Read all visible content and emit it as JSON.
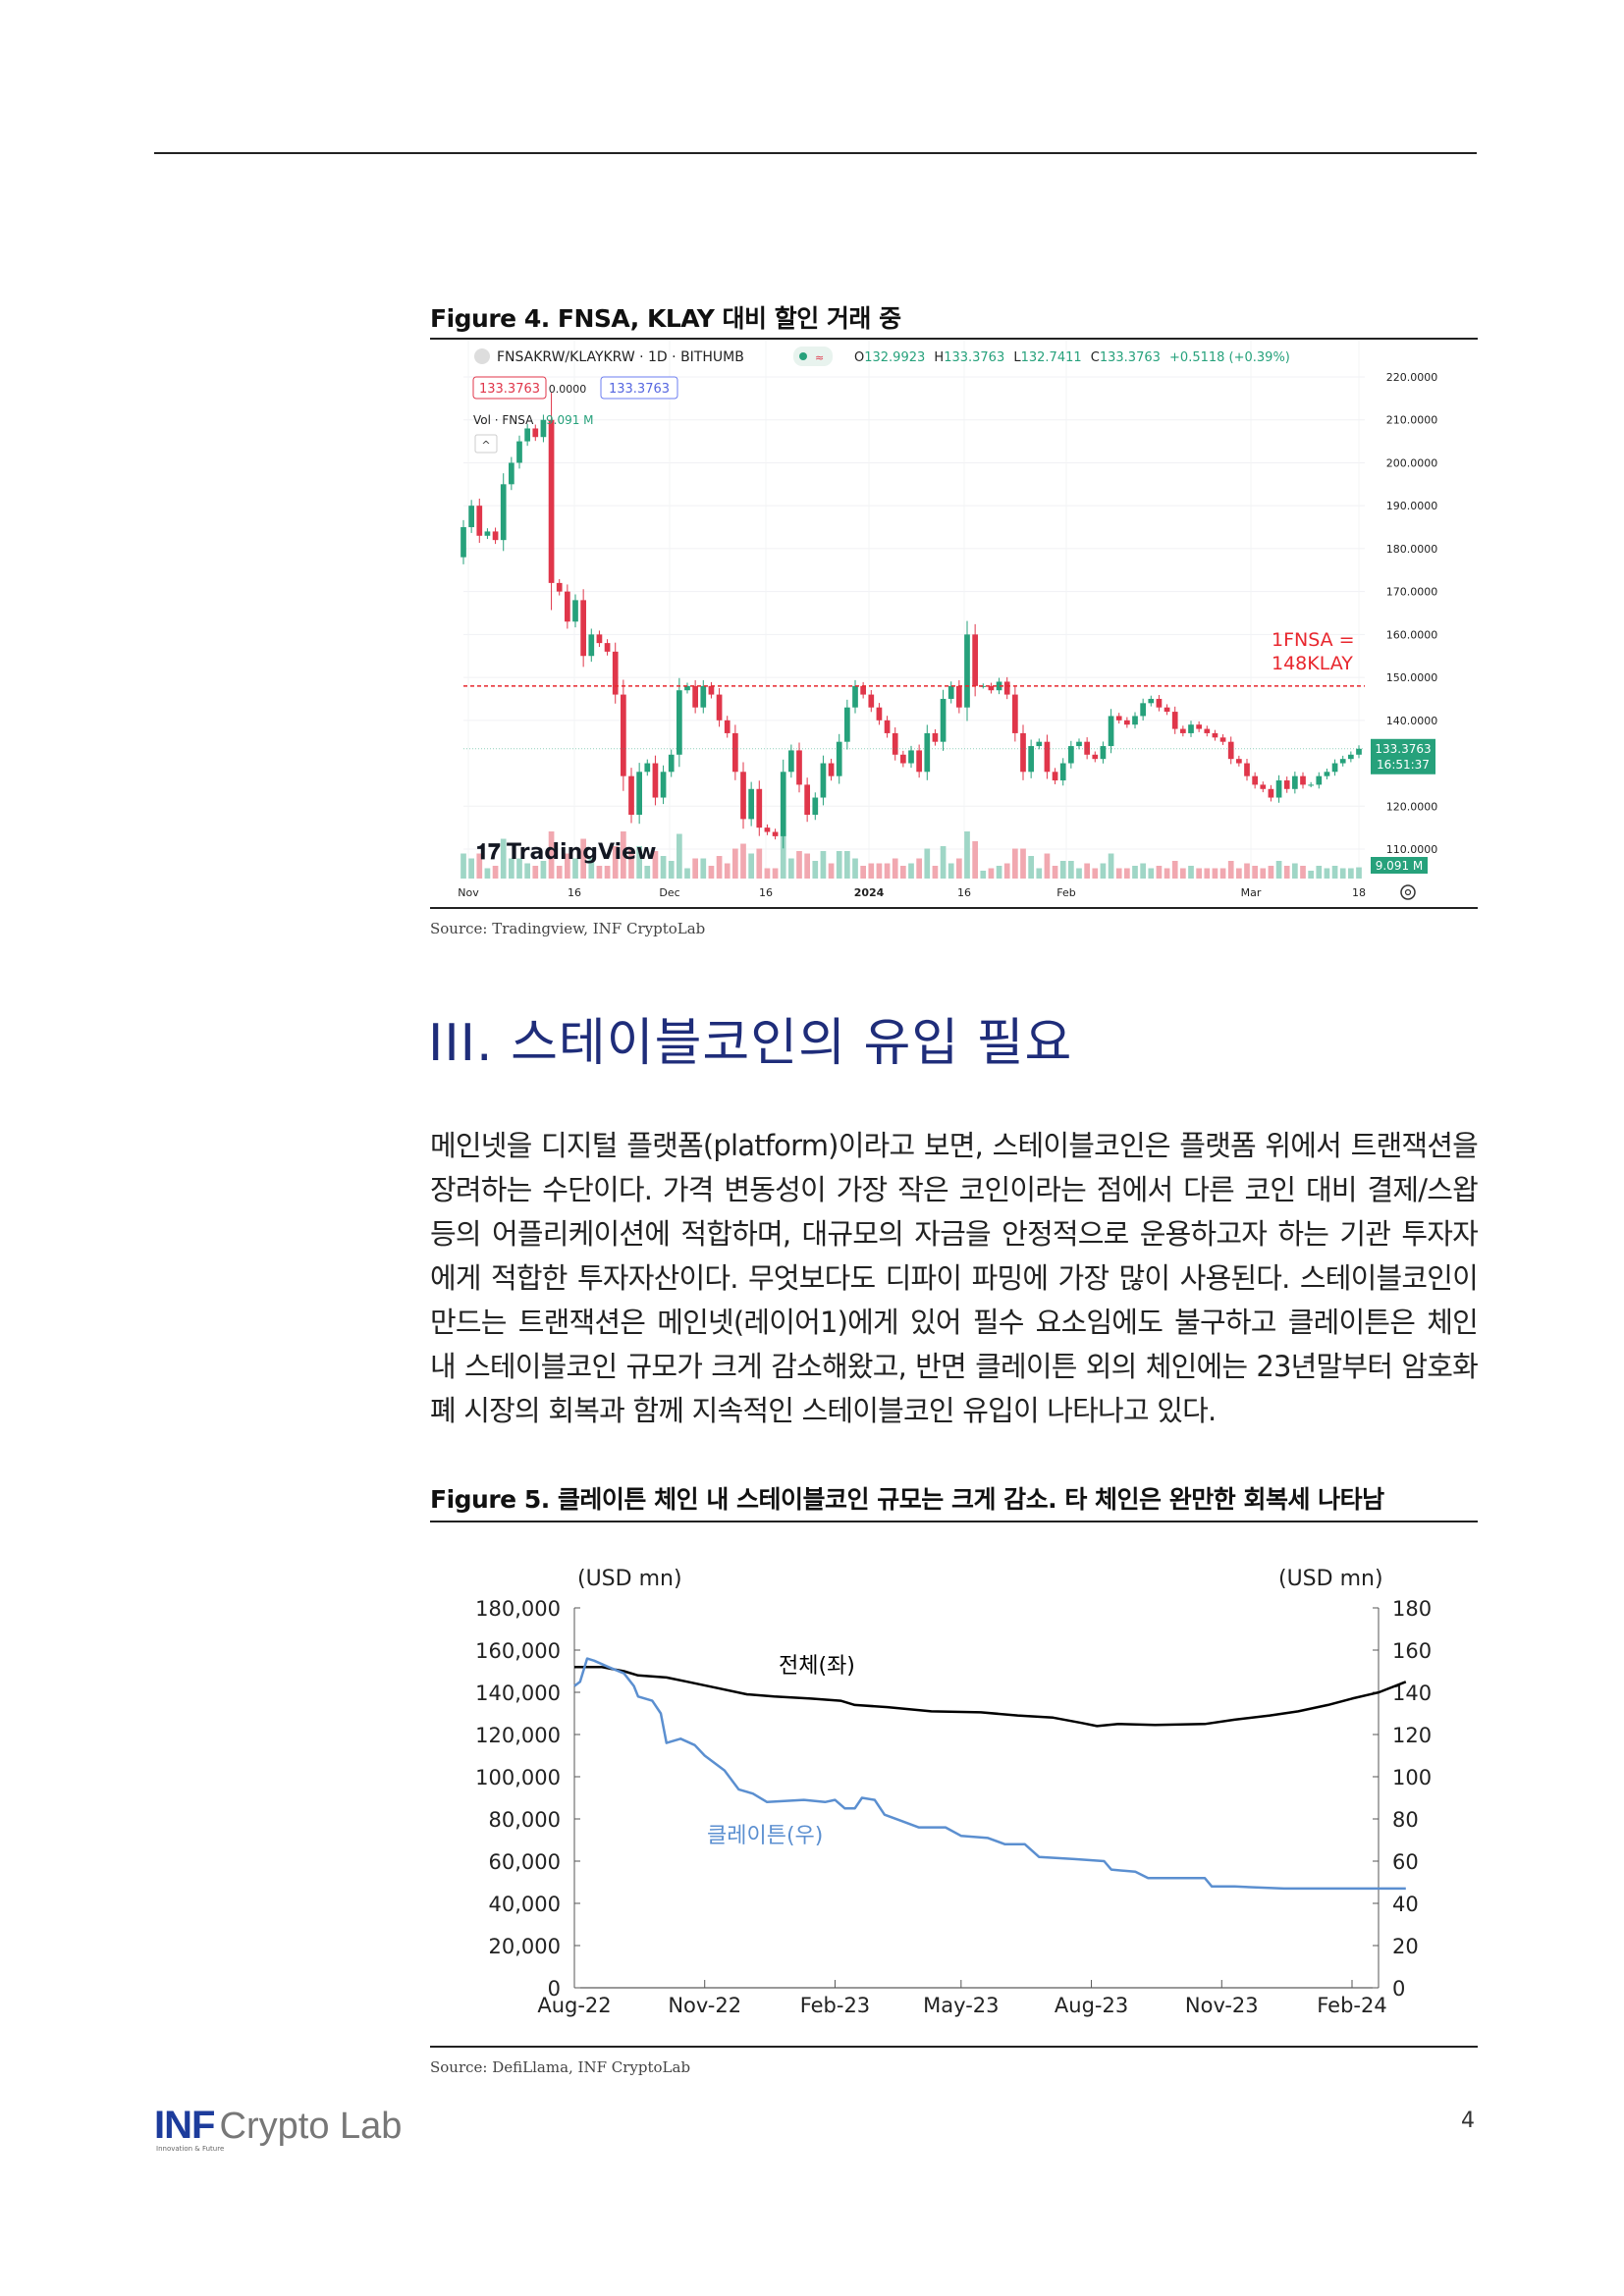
{
  "figure4": {
    "title": "Figure 4. FNSA, KLAY 대비 할인 거래 중",
    "source": "Source: Tradingview, INF CryptoLab",
    "chart_data": {
      "type": "candlestick",
      "symbol": "FNSAKRW/KLAYKRW · 1D · BITHUMB",
      "ohlc_header": {
        "open_label": "O",
        "open": "132.9923",
        "high_label": "H",
        "high": "133.3763",
        "low_label": "L",
        "low": "132.7411",
        "close_label": "C",
        "close": "133.3763",
        "change": "+0.5118 (+0.39%)"
      },
      "price_boxes": [
        "133.3763",
        "0.0000",
        "133.3763"
      ],
      "volume_label": "Vol · FNSA",
      "volume_value": "9.091 M",
      "ylim": [
        110,
        220
      ],
      "y_ticks": [
        "220.0000",
        "210.0000",
        "200.0000",
        "190.0000",
        "180.0000",
        "170.0000",
        "160.0000",
        "150.0000",
        "140.0000",
        "120.0000",
        "110.0000"
      ],
      "x_ticks": [
        "Nov",
        "16",
        "Dec",
        "16",
        "2024",
        "16",
        "Feb",
        "Mar",
        "18"
      ],
      "first_open": 178,
      "closes": [
        185,
        190,
        183,
        184,
        182,
        195,
        200,
        205,
        208,
        206,
        210,
        172,
        170,
        163,
        168,
        155,
        160,
        158,
        156,
        146,
        127,
        118,
        128,
        130,
        122,
        128,
        132,
        147,
        148,
        143,
        148,
        146,
        140,
        137,
        128,
        117,
        124,
        115,
        114,
        113,
        128,
        133,
        125,
        118,
        122,
        130,
        127,
        135,
        143,
        148,
        146,
        143,
        140,
        137,
        132,
        130,
        133,
        128,
        137,
        135,
        145,
        148,
        143,
        160,
        148,
        148,
        147,
        149,
        146,
        137,
        128,
        134,
        135,
        128,
        126,
        130,
        134,
        135,
        132,
        131,
        134,
        141,
        140,
        139,
        141,
        144,
        145,
        143,
        142,
        138,
        137,
        139,
        138,
        137,
        136,
        135,
        131,
        130,
        127,
        125,
        124,
        122,
        126,
        124,
        127,
        125,
        125,
        127,
        128,
        130,
        131,
        132,
        133.3763
      ],
      "reference_line": 148,
      "annotation": [
        "1FNSA =",
        "148KLAY"
      ],
      "last_price_tag": "133.3763",
      "countdown": "16:51:37",
      "volume_tag": "9.091 M",
      "watermark": "TradingView",
      "colors": {
        "up": "#26a17b",
        "down": "#e0364a",
        "reference": "#e8272e",
        "annotation": "#e8272e"
      }
    }
  },
  "section": {
    "heading": "III. 스테이블코인의 유입 필요"
  },
  "body_text": "메인넷을 디지털 플랫폼(platform)이라고 보면, 스테이블코인은 플랫폼 위에서 트랜잭션을 장려하는 수단이다. 가격 변동성이 가장 작은 코인이라는 점에서 다른 코인 대비 결제/스왑 등의 어플리케이션에 적합하며, 대규모의 자금을 안정적으로 운용하고자 하는 기관 투자자에게 적합한 투자자산이다. 무엇보다도 디파이 파밍에 가장 많이 사용된다. 스테이블코인이 만드는 트랜잭션은 메인넷(레이어1)에게 있어 필수 요소임에도 불구하고 클레이튼은 체인 내 스테이블코인 규모가 크게 감소해왔고, 반면 클레이튼 외의 체인에는 23년말부터 암호화폐 시장의 회복과 함께 지속적인 스테이블코인 유입이 나타나고 있다.",
  "figure5": {
    "title": "Figure 5. 클레이튼 체인 내 스테이블코인 규모는 크게 감소. 타 체인은 완만한 회복세 나타남",
    "source": "Source: DefiLlama, INF CryptoLab",
    "chart_data": {
      "type": "line",
      "left_unit": "(USD mn)",
      "right_unit": "(USD mn)",
      "left_ylim": [
        0,
        180000
      ],
      "right_ylim": [
        0,
        180
      ],
      "left_ticks": [
        "180,000",
        "160,000",
        "140,000",
        "120,000",
        "100,000",
        "80,000",
        "60,000",
        "40,000",
        "20,000",
        "0"
      ],
      "right_ticks": [
        "180",
        "160",
        "140",
        "120",
        "100",
        "80",
        "60",
        "40",
        "20",
        "0"
      ],
      "x_ticks": [
        "Aug-22",
        "Nov-22",
        "Feb-23",
        "May-23",
        "Aug-23",
        "Nov-23",
        "Feb-24"
      ],
      "series": [
        {
          "name": "전체(좌)",
          "axis": "left",
          "color": "#000000",
          "x": [
            "2022-08-01",
            "2022-08-20",
            "2022-09-05",
            "2022-09-15",
            "2022-10-05",
            "2022-10-20",
            "2022-11-10",
            "2022-12-01",
            "2022-12-20",
            "2023-01-15",
            "2023-02-05",
            "2023-02-15",
            "2023-03-10",
            "2023-04-10",
            "2023-05-15",
            "2023-06-10",
            "2023-07-05",
            "2023-07-25",
            "2023-08-05",
            "2023-08-20",
            "2023-09-15",
            "2023-10-20",
            "2023-11-10",
            "2023-12-05",
            "2023-12-25",
            "2024-01-15",
            "2024-02-01",
            "2024-02-20",
            "2024-03-10"
          ],
          "y": [
            152000,
            152000,
            150000,
            148000,
            147000,
            145000,
            142000,
            139000,
            138000,
            137000,
            136000,
            134000,
            133000,
            131000,
            130500,
            129000,
            128000,
            125500,
            124000,
            125000,
            124500,
            125000,
            127000,
            129000,
            131000,
            134000,
            137000,
            140000,
            145000
          ]
        },
        {
          "name": "클레이튼(우)",
          "axis": "right",
          "color": "#5b8fd0",
          "x": [
            "2022-08-01",
            "2022-08-05",
            "2022-08-10",
            "2022-08-15",
            "2022-08-25",
            "2022-09-05",
            "2022-09-12",
            "2022-09-15",
            "2022-09-25",
            "2022-10-01",
            "2022-10-05",
            "2022-10-15",
            "2022-10-25",
            "2022-11-01",
            "2022-11-15",
            "2022-11-25",
            "2022-12-05",
            "2022-12-15",
            "2023-01-10",
            "2023-01-25",
            "2023-02-01",
            "2023-02-08",
            "2023-02-15",
            "2023-02-20",
            "2023-03-01",
            "2023-03-08",
            "2023-03-20",
            "2023-04-01",
            "2023-04-20",
            "2023-05-01",
            "2023-05-20",
            "2023-06-01",
            "2023-06-15",
            "2023-06-25",
            "2023-07-20",
            "2023-08-10",
            "2023-08-15",
            "2023-09-01",
            "2023-09-10",
            "2023-10-01",
            "2023-10-20",
            "2023-10-25",
            "2023-11-10",
            "2023-12-15",
            "2024-03-10"
          ],
          "y": [
            143,
            145,
            156,
            155,
            152,
            149,
            143,
            138,
            136,
            130,
            116,
            118,
            115,
            110,
            103,
            94,
            92,
            88,
            89,
            88,
            89,
            85,
            85,
            90,
            89,
            82,
            79,
            76,
            76,
            72,
            71,
            68,
            68,
            62,
            61,
            60,
            56,
            55,
            52,
            52,
            52,
            48,
            48,
            47,
            47
          ]
        }
      ]
    }
  },
  "footer": {
    "logo_main": "INF",
    "logo_sub": "Crypto Lab",
    "logo_tagline": "Innovation & Future",
    "page_number": "4"
  }
}
